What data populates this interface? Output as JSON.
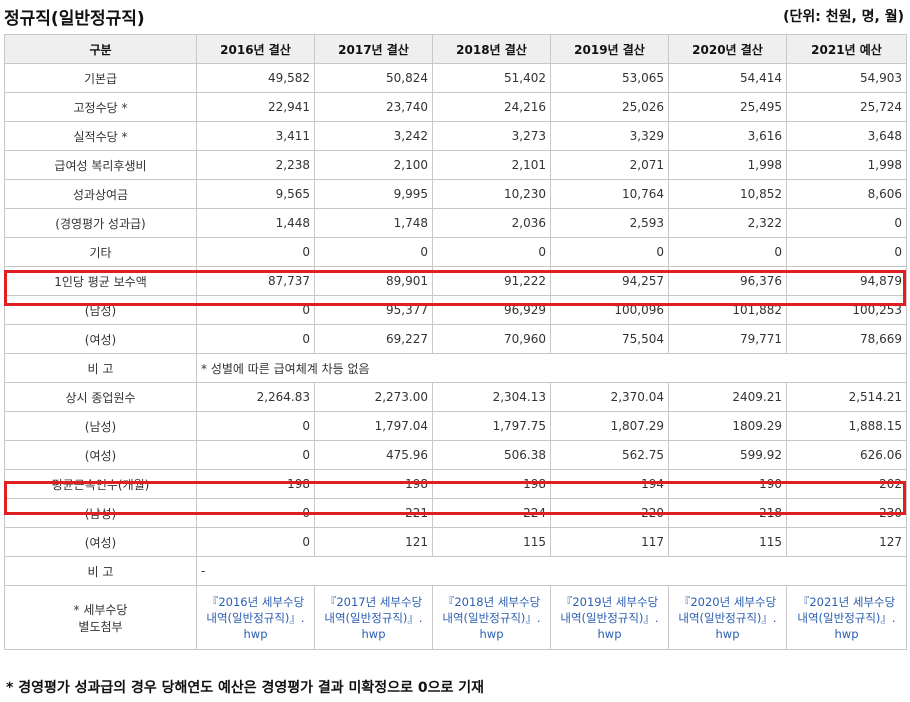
{
  "header": {
    "title": "정규직(일반정규직)",
    "unit": "(단위: 천원, 명, 월)"
  },
  "table": {
    "columns": [
      "구분",
      "2016년 결산",
      "2017년 결산",
      "2018년 결산",
      "2019년 결산",
      "2020년 결산",
      "2021년 예산"
    ],
    "rows": [
      {
        "label": "기본급",
        "values": [
          "49,582",
          "50,824",
          "51,402",
          "53,065",
          "54,414",
          "54,903"
        ]
      },
      {
        "label": "고정수당 *",
        "values": [
          "22,941",
          "23,740",
          "24,216",
          "25,026",
          "25,495",
          "25,724"
        ]
      },
      {
        "label": "실적수당 *",
        "values": [
          "3,411",
          "3,242",
          "3,273",
          "3,329",
          "3,616",
          "3,648"
        ]
      },
      {
        "label": "급여성 복리후생비",
        "values": [
          "2,238",
          "2,100",
          "2,101",
          "2,071",
          "1,998",
          "1,998"
        ]
      },
      {
        "label": "성과상여금",
        "values": [
          "9,565",
          "9,995",
          "10,230",
          "10,764",
          "10,852",
          "8,606"
        ]
      },
      {
        "label": "(경영평가 성과급)",
        "values": [
          "1,448",
          "1,748",
          "2,036",
          "2,593",
          "2,322",
          "0"
        ]
      },
      {
        "label": "기타",
        "values": [
          "0",
          "0",
          "0",
          "0",
          "0",
          "0"
        ]
      },
      {
        "label": "1인당 평균 보수액",
        "values": [
          "87,737",
          "89,901",
          "91,222",
          "94,257",
          "96,376",
          "94,879"
        ]
      },
      {
        "label": "(남성)",
        "values": [
          "0",
          "95,377",
          "96,929",
          "100,096",
          "101,882",
          "100,253"
        ]
      },
      {
        "label": "(여성)",
        "values": [
          "0",
          "69,227",
          "70,960",
          "75,504",
          "79,771",
          "78,669"
        ]
      }
    ],
    "remark1": {
      "label": "비 고",
      "text": "* 성별에 따른 급여체계 차등 없음"
    },
    "rows2": [
      {
        "label": "상시 종업원수",
        "values": [
          "2,264.83",
          "2,273.00",
          "2,304.13",
          "2,370.04",
          "2409.21",
          "2,514.21"
        ]
      },
      {
        "label": "(남성)",
        "values": [
          "0",
          "1,797.04",
          "1,797.75",
          "1,807.29",
          "1809.29",
          "1,888.15"
        ]
      },
      {
        "label": "(여성)",
        "values": [
          "0",
          "475.96",
          "506.38",
          "562.75",
          "599.92",
          "626.06"
        ]
      },
      {
        "label": "평균근속연수(개월)",
        "values": [
          "198",
          "198",
          "198",
          "194",
          "190",
          "202"
        ]
      },
      {
        "label": "(남성)",
        "values": [
          "0",
          "221",
          "224",
          "220",
          "218",
          "230"
        ]
      },
      {
        "label": "(여성)",
        "values": [
          "0",
          "121",
          "115",
          "117",
          "115",
          "127"
        ]
      }
    ],
    "remark2": {
      "label": "비 고",
      "text": "-"
    },
    "attachments": {
      "label_line1": "* 세부수당",
      "label_line2": "별도첨부",
      "files": [
        {
          "line1": "『2016년 세부수당",
          "line2": "내역(일반정규직)』.",
          "line3": "hwp"
        },
        {
          "line1": "『2017년 세부수당",
          "line2": "내역(일반정규직)』.",
          "line3": "hwp"
        },
        {
          "line1": "『2018년 세부수당",
          "line2": "내역(일반정규직)』.",
          "line3": "hwp"
        },
        {
          "line1": "『2019년 세부수당",
          "line2": "내역(일반정규직)』.",
          "line3": "hwp"
        },
        {
          "line1": "『2020년 세부수당",
          "line2": "내역(일반정규직)』.",
          "line3": "hwp"
        },
        {
          "line1": "『2021년 세부수당",
          "line2": "내역(일반정규직)』.",
          "line3": "hwp"
        }
      ]
    }
  },
  "footnote": "* 경영평가 성과급의 경우 당해연도 예산은 경영평가 결과 미확정으로 0으로 기재",
  "colors": {
    "highlight": "#e02020",
    "header_bg": "#efefef",
    "link": "#2a5db0"
  }
}
